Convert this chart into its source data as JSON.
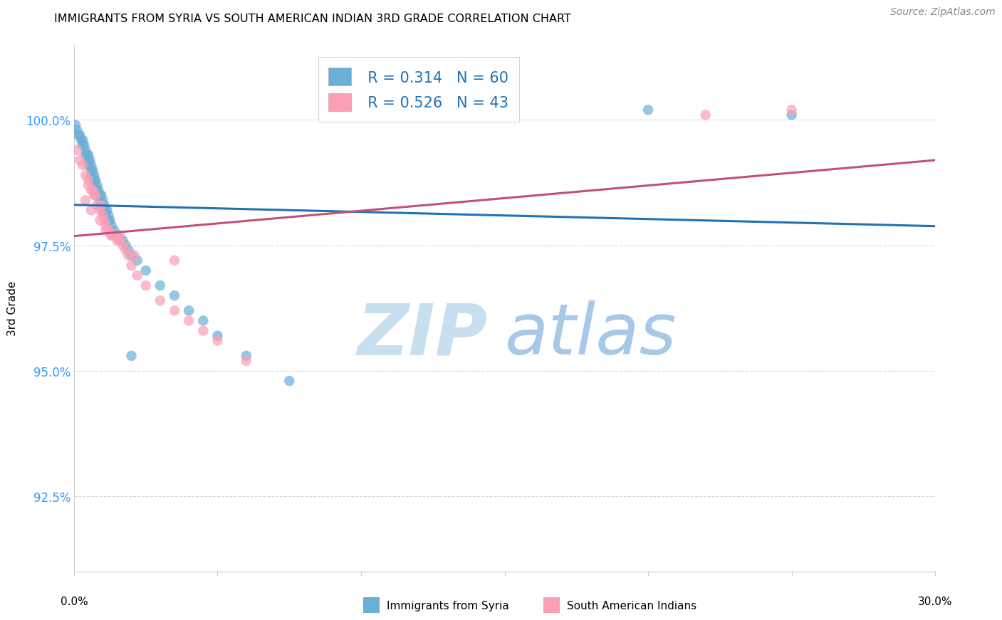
{
  "title": "IMMIGRANTS FROM SYRIA VS SOUTH AMERICAN INDIAN 3RD GRADE CORRELATION CHART",
  "source": "Source: ZipAtlas.com",
  "ylabel": "3rd Grade",
  "y_ticks": [
    92.5,
    95.0,
    97.5,
    100.0
  ],
  "y_tick_labels": [
    "92.5%",
    "95.0%",
    "97.5%",
    "100.0%"
  ],
  "xlim": [
    0.0,
    30.0
  ],
  "ylim": [
    91.0,
    101.5
  ],
  "legend_r1": "R = 0.314",
  "legend_n1": "N = 60",
  "legend_r2": "R = 0.526",
  "legend_n2": "N = 43",
  "color_blue": "#6baed6",
  "color_pink": "#fa9fb5",
  "color_blue_line": "#2171b5",
  "color_pink_line": "#c2507a",
  "watermark_zip": "ZIP",
  "watermark_atlas": "atlas",
  "watermark_color_zip": "#c8dff0",
  "watermark_color_atlas": "#a8c8e8",
  "blue_x": [
    0.05,
    0.1,
    0.15,
    0.2,
    0.25,
    0.3,
    0.3,
    0.35,
    0.4,
    0.4,
    0.45,
    0.5,
    0.5,
    0.5,
    0.55,
    0.6,
    0.6,
    0.6,
    0.65,
    0.7,
    0.7,
    0.7,
    0.75,
    0.8,
    0.8,
    0.8,
    0.85,
    0.9,
    0.9,
    0.95,
    1.0,
    1.0,
    1.0,
    1.05,
    1.1,
    1.1,
    1.15,
    1.2,
    1.2,
    1.25,
    1.3,
    1.4,
    1.5,
    1.6,
    1.7,
    1.8,
    1.9,
    2.0,
    2.2,
    2.5,
    3.0,
    3.5,
    4.0,
    4.5,
    5.0,
    6.0,
    7.5,
    2.0,
    20.0,
    25.0
  ],
  "blue_y": [
    99.9,
    99.8,
    99.7,
    99.7,
    99.6,
    99.6,
    99.5,
    99.5,
    99.4,
    99.3,
    99.3,
    99.3,
    99.2,
    99.1,
    99.2,
    99.1,
    99.0,
    98.9,
    99.0,
    98.9,
    98.8,
    98.7,
    98.8,
    98.7,
    98.6,
    98.5,
    98.6,
    98.5,
    98.4,
    98.5,
    98.4,
    98.3,
    98.2,
    98.3,
    98.2,
    98.1,
    98.2,
    98.1,
    98.0,
    98.0,
    97.9,
    97.8,
    97.7,
    97.6,
    97.6,
    97.5,
    97.4,
    97.3,
    97.2,
    97.0,
    96.7,
    96.5,
    96.2,
    96.0,
    95.7,
    95.3,
    94.8,
    95.3,
    100.2,
    100.1
  ],
  "pink_x": [
    0.1,
    0.2,
    0.3,
    0.4,
    0.5,
    0.5,
    0.6,
    0.65,
    0.7,
    0.75,
    0.8,
    0.9,
    0.95,
    1.0,
    1.05,
    1.1,
    1.2,
    1.3,
    1.4,
    1.5,
    1.6,
    1.7,
    1.8,
    1.9,
    2.0,
    2.2,
    2.5,
    3.0,
    3.5,
    4.0,
    4.5,
    5.0,
    6.0,
    3.5,
    0.4,
    0.6,
    0.9,
    1.1,
    1.3,
    1.6,
    2.1,
    25.0,
    22.0
  ],
  "pink_y": [
    99.4,
    99.2,
    99.1,
    98.9,
    98.8,
    98.7,
    98.6,
    98.6,
    98.5,
    98.5,
    98.3,
    98.2,
    98.3,
    98.1,
    98.0,
    97.9,
    97.8,
    97.7,
    97.7,
    97.6,
    97.7,
    97.5,
    97.4,
    97.3,
    97.1,
    96.9,
    96.7,
    96.4,
    96.2,
    96.0,
    95.8,
    95.6,
    95.2,
    97.2,
    98.4,
    98.2,
    98.0,
    97.8,
    97.7,
    97.6,
    97.3,
    100.2,
    100.1
  ]
}
